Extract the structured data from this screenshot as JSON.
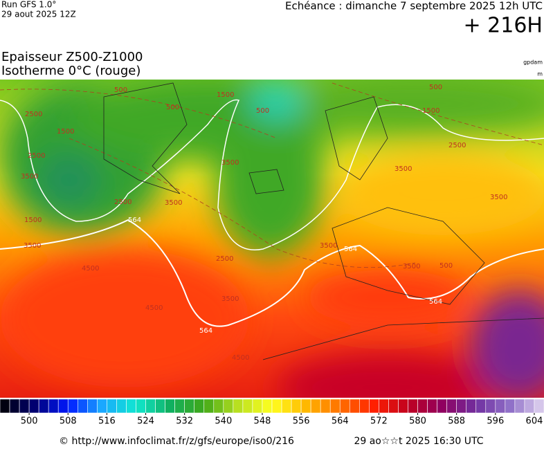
{
  "header": {
    "run": "Run GFS 1.0°",
    "run_date": "29 aout 2025 12Z",
    "valid": "Echéance : dimanche 7 septembre 2025 12h UTC",
    "lead": "+ 216H",
    "title_line1": "Epaisseur Z500-Z1000",
    "title_line2": "Isotherme 0°C (rouge)",
    "unit1": "gpdam",
    "unit2": "m"
  },
  "map": {
    "labels": [
      "500",
      "1500",
      "2500",
      "3500",
      "500",
      "1500",
      "2500",
      "500",
      "3500",
      "2500",
      "1500",
      "3500",
      "564",
      "3500",
      "2500",
      "4500",
      "3500",
      "4500",
      "564",
      "4500",
      "500",
      "1500",
      "2500",
      "3500",
      "3500",
      "3500",
      "564",
      "3500",
      "500",
      "564"
    ]
  },
  "colorbar": {
    "range": [
      494,
      606
    ],
    "step": 2,
    "ticks": [
      500,
      508,
      516,
      524,
      532,
      540,
      548,
      556,
      564,
      572,
      580,
      588,
      596,
      604
    ],
    "colors": [
      "#000000",
      "#000070",
      "#0018ff",
      "#1aa8ff",
      "#10e8d0",
      "#10b060",
      "#40a818",
      "#b8e020",
      "#ffff20",
      "#ffb800",
      "#ff7000",
      "#ff2000",
      "#c00020",
      "#900060",
      "#7030a0",
      "#9070c8",
      "#e0d4f0"
    ]
  },
  "footer": {
    "source": "© http://www.infoclimat.fr/z/gfs/europe/iso0/216",
    "generated": "29 ao☆☆t 2025 16:30 UTC"
  }
}
